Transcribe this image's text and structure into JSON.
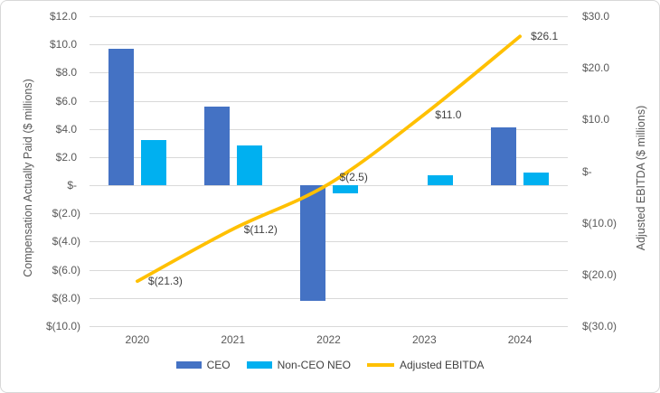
{
  "chart_data": {
    "type": "bar",
    "subtype": "dual-axis-bar-line-combo",
    "title": "",
    "categories": [
      "2020",
      "2021",
      "2022",
      "2023",
      "2024"
    ],
    "series": [
      {
        "name": "CEO",
        "type": "bar",
        "axis": "left",
        "color": "#4472C4",
        "values": [
          9.7,
          5.6,
          -8.2,
          0,
          4.1
        ]
      },
      {
        "name": "Non-CEO NEO",
        "type": "bar",
        "axis": "left",
        "color": "#00B0F0",
        "values": [
          3.2,
          2.8,
          -0.6,
          0.7,
          0.9
        ]
      },
      {
        "name": "Adjusted EBITDA",
        "type": "line",
        "axis": "right",
        "color": "#FFC000",
        "values": [
          -21.3,
          -11.2,
          -2.5,
          11.0,
          26.1
        ],
        "point_labels": [
          "$(21.3)",
          "$(11.2)",
          "$(2.5)",
          "$11.0",
          "$26.1"
        ],
        "point_label_dy": [
          0,
          0,
          -8,
          0,
          0
        ]
      }
    ],
    "left_axis": {
      "title": "Compensation Actually Paid ($ millions)",
      "max": 12,
      "min": -10,
      "step": 2,
      "tick_labels": [
        "$12.0",
        "$10.0",
        "$8.0",
        "$6.0",
        "$4.0",
        "$2.0",
        "$-",
        "$(2.0)",
        "$(4.0)",
        "$(6.0)",
        "$(8.0)",
        "$(10.0)"
      ]
    },
    "right_axis": {
      "title": "Adjusted EBITDA ($ millions)",
      "max": 30,
      "min": -30,
      "step": 10,
      "tick_labels": [
        "$30.0",
        "$20.0",
        "$10.0",
        "$-",
        "$(10.0)",
        "$(20.0)",
        "$(30.0)"
      ]
    },
    "grid": true,
    "legend_position": "bottom",
    "colors": {
      "gridline": "#d9d9d9",
      "tick_text": "#595959",
      "data_label_text": "#404040"
    }
  }
}
